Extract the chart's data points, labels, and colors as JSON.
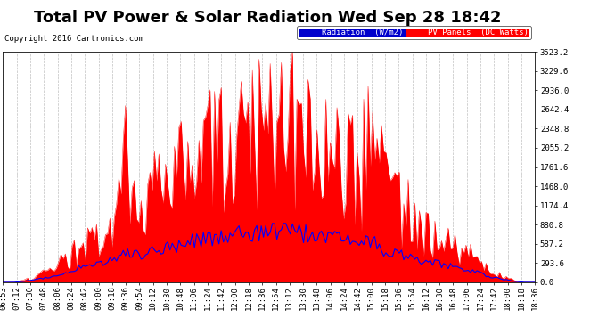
{
  "title": "Total PV Power & Solar Radiation Wed Sep 28 18:42",
  "copyright": "Copyright 2016 Cartronics.com",
  "legend_radiation": "Radiation  (W/m2)",
  "legend_pv": "PV Panels  (DC Watts)",
  "ylabel_right_values": [
    0.0,
    293.6,
    587.2,
    880.8,
    1174.4,
    1468.0,
    1761.6,
    2055.2,
    2348.8,
    2642.4,
    2936.0,
    3229.6,
    3523.2
  ],
  "ymax": 3523.2,
  "ymin": 0.0,
  "xtick_labels": [
    "06:53",
    "07:12",
    "07:30",
    "07:48",
    "08:06",
    "08:24",
    "08:42",
    "09:00",
    "09:18",
    "09:36",
    "09:54",
    "10:12",
    "10:30",
    "10:48",
    "11:06",
    "11:24",
    "11:42",
    "12:00",
    "12:18",
    "12:36",
    "12:54",
    "13:12",
    "13:30",
    "13:48",
    "14:06",
    "14:24",
    "14:42",
    "15:00",
    "15:18",
    "15:36",
    "15:54",
    "16:12",
    "16:30",
    "16:48",
    "17:06",
    "17:24",
    "17:42",
    "18:00",
    "18:18",
    "18:36"
  ],
  "bg_color": "#ffffff",
  "plot_bg_color": "#ffffff",
  "grid_color": "#b0b0b0",
  "pv_color": "#ff0000",
  "pv_fill_color": "#ff0000",
  "radiation_color": "#0000ff",
  "legend_radiation_bg": "#0000cc",
  "legend_pv_bg": "#ff0000",
  "title_fontsize": 13,
  "tick_fontsize": 6.5,
  "copyright_fontsize": 6.5
}
